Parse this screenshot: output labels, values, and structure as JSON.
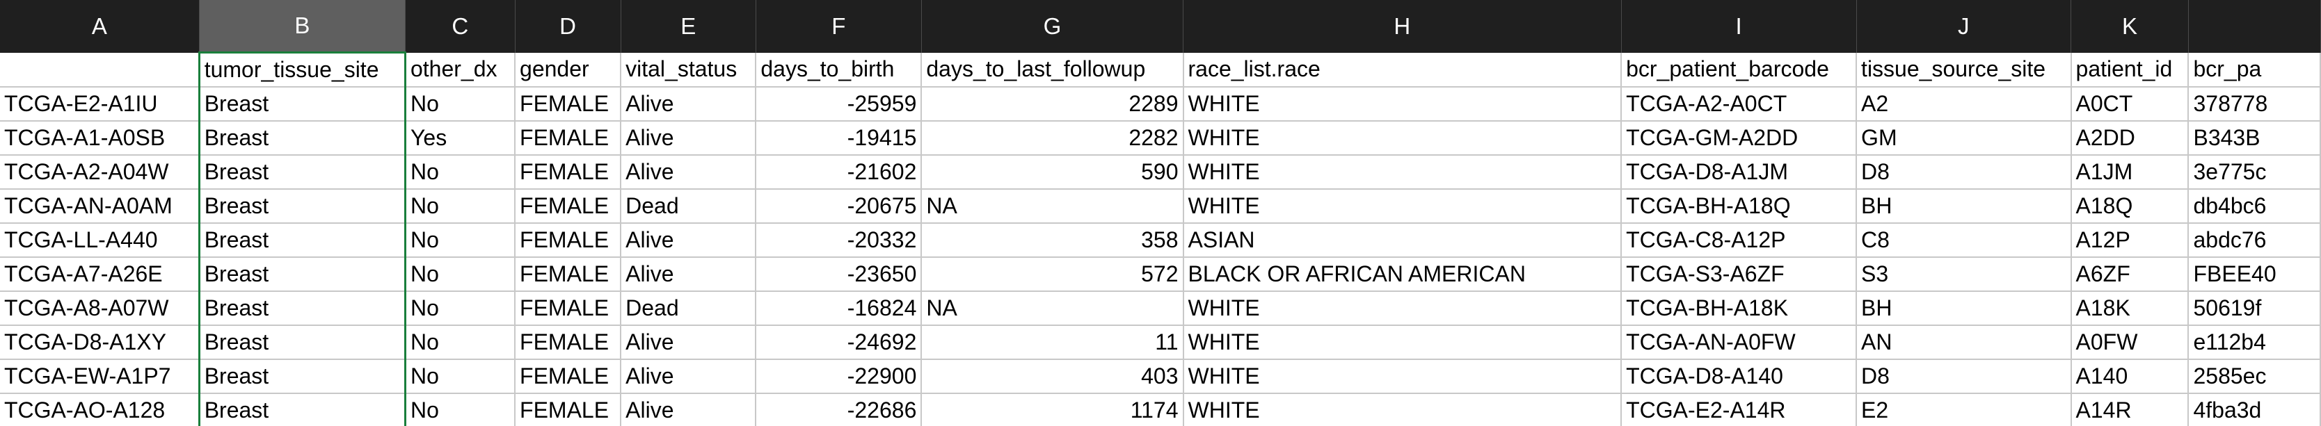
{
  "columns": [
    "A",
    "B",
    "C",
    "D",
    "E",
    "F",
    "G",
    "H",
    "I",
    "J",
    "K",
    ""
  ],
  "header": [
    "",
    "tumor_tissue_site",
    "other_dx",
    "gender",
    "vital_status",
    "days_to_birth",
    "days_to_last_followup",
    "race_list.race",
    "bcr_patient_barcode",
    "tissue_source_site",
    "patient_id",
    "bcr_pa"
  ],
  "rows": [
    [
      "TCGA-E2-A1IU",
      "Breast",
      "No",
      "FEMALE",
      "Alive",
      "-25959",
      "2289",
      "WHITE",
      "TCGA-A2-A0CT",
      "A2",
      "A0CT",
      "378778"
    ],
    [
      "TCGA-A1-A0SB",
      "Breast",
      "Yes",
      "FEMALE",
      "Alive",
      "-19415",
      "2282",
      "WHITE",
      "TCGA-GM-A2DD",
      "GM",
      "A2DD",
      "B343B"
    ],
    [
      "TCGA-A2-A04W",
      "Breast",
      "No",
      "FEMALE",
      "Alive",
      "-21602",
      "590",
      "WHITE",
      "TCGA-D8-A1JM",
      "D8",
      "A1JM",
      "3e775c"
    ],
    [
      "TCGA-AN-A0AM",
      "Breast",
      "No",
      "FEMALE",
      "Dead",
      "-20675",
      "NA",
      "WHITE",
      "TCGA-BH-A18Q",
      "BH",
      "A18Q",
      "db4bc6"
    ],
    [
      "TCGA-LL-A440",
      "Breast",
      "No",
      "FEMALE",
      "Alive",
      "-20332",
      "358",
      "ASIAN",
      "TCGA-C8-A12P",
      "C8",
      "A12P",
      "abdc76"
    ],
    [
      "TCGA-A7-A26E",
      "Breast",
      "No",
      "FEMALE",
      "Alive",
      "-23650",
      "572",
      "BLACK OR AFRICAN AMERICAN",
      "TCGA-S3-A6ZF",
      "S3",
      "A6ZF",
      "FBEE40"
    ],
    [
      "TCGA-A8-A07W",
      "Breast",
      "No",
      "FEMALE",
      "Dead",
      "-16824",
      "NA",
      "WHITE",
      "TCGA-BH-A18K",
      "BH",
      "A18K",
      "50619f"
    ],
    [
      "TCGA-D8-A1XY",
      "Breast",
      "No",
      "FEMALE",
      "Alive",
      "-24692",
      "11",
      "WHITE",
      "TCGA-AN-A0FW",
      "AN",
      "A0FW",
      "e112b4"
    ],
    [
      "TCGA-EW-A1P7",
      "Breast",
      "No",
      "FEMALE",
      "Alive",
      "-22900",
      "403",
      "WHITE",
      "TCGA-D8-A140",
      "D8",
      "A140",
      "2585ec"
    ],
    [
      "TCGA-AO-A128",
      "Breast",
      "No",
      "FEMALE",
      "Alive",
      "-22686",
      "1174",
      "WHITE",
      "TCGA-E2-A14R",
      "E2",
      "A14R",
      "4fba3d"
    ]
  ],
  "selected_column": "B",
  "colors": {
    "header_bg": "#1f1f1f",
    "selected_header_bg": "#5f5f5f",
    "selection_border": "#1a7f3c",
    "gridline": "#c8c8c8"
  }
}
